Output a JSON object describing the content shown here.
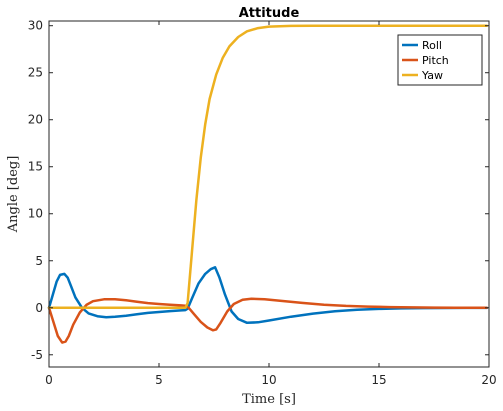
{
  "chart_data": {
    "type": "line",
    "title": "Attitude",
    "xlabel": "Time [s]",
    "ylabel": "Angle [deg]",
    "xlim": [
      0,
      20
    ],
    "ylim": [
      -6.3,
      30.5
    ],
    "xticks": [
      0,
      5,
      10,
      15,
      20
    ],
    "yticks": [
      -5,
      0,
      5,
      10,
      15,
      20,
      25,
      30
    ],
    "grid": false,
    "legend_position": "top-right",
    "series": [
      {
        "name": "Roll",
        "color": "#0072BD",
        "points": [
          [
            0,
            0
          ],
          [
            0.15,
            1.2
          ],
          [
            0.35,
            2.8
          ],
          [
            0.5,
            3.5
          ],
          [
            0.7,
            3.6
          ],
          [
            0.85,
            3.2
          ],
          [
            1.0,
            2.3
          ],
          [
            1.2,
            1.1
          ],
          [
            1.5,
            0.0
          ],
          [
            1.8,
            -0.6
          ],
          [
            2.2,
            -0.9
          ],
          [
            2.6,
            -1.0
          ],
          [
            3.0,
            -0.95
          ],
          [
            3.5,
            -0.85
          ],
          [
            4.0,
            -0.7
          ],
          [
            4.5,
            -0.55
          ],
          [
            5.0,
            -0.45
          ],
          [
            5.5,
            -0.35
          ],
          [
            6.0,
            -0.28
          ],
          [
            6.2,
            -0.25
          ],
          [
            6.3,
            -0.1
          ],
          [
            6.5,
            1.0
          ],
          [
            6.8,
            2.6
          ],
          [
            7.1,
            3.6
          ],
          [
            7.35,
            4.1
          ],
          [
            7.55,
            4.3
          ],
          [
            7.75,
            3.2
          ],
          [
            8.0,
            1.4
          ],
          [
            8.3,
            -0.4
          ],
          [
            8.6,
            -1.2
          ],
          [
            9.0,
            -1.6
          ],
          [
            9.5,
            -1.55
          ],
          [
            10.0,
            -1.35
          ],
          [
            11.0,
            -0.95
          ],
          [
            12.0,
            -0.62
          ],
          [
            13.0,
            -0.38
          ],
          [
            14.0,
            -0.22
          ],
          [
            15.0,
            -0.12
          ],
          [
            16.0,
            -0.07
          ],
          [
            17.0,
            -0.04
          ],
          [
            18.0,
            -0.02
          ],
          [
            19.0,
            -0.01
          ],
          [
            19.9,
            -0.01
          ]
        ]
      },
      {
        "name": "Pitch",
        "color": "#D95319",
        "points": [
          [
            0,
            0
          ],
          [
            0.2,
            -1.5
          ],
          [
            0.4,
            -3.0
          ],
          [
            0.6,
            -3.7
          ],
          [
            0.75,
            -3.6
          ],
          [
            0.9,
            -3.0
          ],
          [
            1.1,
            -1.8
          ],
          [
            1.4,
            -0.5
          ],
          [
            1.7,
            0.3
          ],
          [
            2.0,
            0.7
          ],
          [
            2.5,
            0.9
          ],
          [
            3.0,
            0.9
          ],
          [
            3.5,
            0.8
          ],
          [
            4.0,
            0.65
          ],
          [
            4.5,
            0.5
          ],
          [
            5.0,
            0.4
          ],
          [
            5.5,
            0.32
          ],
          [
            6.0,
            0.25
          ],
          [
            6.2,
            0.22
          ],
          [
            6.35,
            0.0
          ],
          [
            6.6,
            -0.7
          ],
          [
            6.9,
            -1.5
          ],
          [
            7.2,
            -2.1
          ],
          [
            7.45,
            -2.4
          ],
          [
            7.6,
            -2.3
          ],
          [
            7.8,
            -1.6
          ],
          [
            8.1,
            -0.4
          ],
          [
            8.4,
            0.4
          ],
          [
            8.8,
            0.85
          ],
          [
            9.2,
            0.95
          ],
          [
            9.8,
            0.9
          ],
          [
            10.5,
            0.75
          ],
          [
            11.5,
            0.52
          ],
          [
            12.5,
            0.33
          ],
          [
            13.5,
            0.2
          ],
          [
            14.5,
            0.12
          ],
          [
            15.5,
            0.07
          ],
          [
            16.5,
            0.04
          ],
          [
            17.5,
            0.02
          ],
          [
            18.5,
            0.01
          ],
          [
            19.9,
            0.0
          ]
        ]
      },
      {
        "name": "Yaw",
        "color": "#EDB120",
        "points": [
          [
            0,
            0
          ],
          [
            6.2,
            0
          ],
          [
            6.3,
            0.5
          ],
          [
            6.5,
            6.0
          ],
          [
            6.7,
            11.5
          ],
          [
            6.9,
            16.0
          ],
          [
            7.1,
            19.5
          ],
          [
            7.3,
            22.2
          ],
          [
            7.6,
            24.8
          ],
          [
            7.9,
            26.6
          ],
          [
            8.2,
            27.8
          ],
          [
            8.6,
            28.8
          ],
          [
            9.0,
            29.4
          ],
          [
            9.5,
            29.75
          ],
          [
            10.0,
            29.9
          ],
          [
            11.0,
            29.98
          ],
          [
            12.0,
            30.0
          ],
          [
            15.0,
            30.0
          ],
          [
            19.9,
            30.0
          ]
        ]
      }
    ]
  }
}
